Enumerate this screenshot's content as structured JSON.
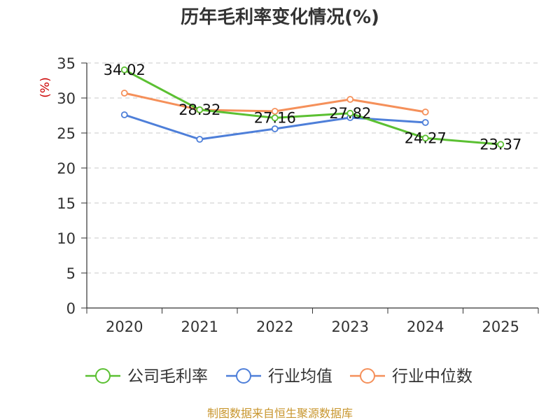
{
  "chart_data": {
    "type": "line",
    "title": "历年毛利率变化情况(%)",
    "ylabel": "(%)",
    "xlabel": "",
    "categories": [
      "2020",
      "2021",
      "2022",
      "2023",
      "2024",
      "2025"
    ],
    "ylim": [
      0,
      35
    ],
    "yticks": [
      0,
      5,
      10,
      15,
      20,
      25,
      30,
      35
    ],
    "grid": "horizontal dashed",
    "legend_position": "bottom",
    "series": [
      {
        "name": "公司毛利率",
        "color": "#5bc032",
        "values": [
          34.02,
          28.32,
          27.16,
          27.82,
          24.27,
          23.37
        ],
        "labels": [
          "34.02",
          "28.32",
          "27.16",
          "27.82",
          "24.27",
          "23.37"
        ]
      },
      {
        "name": "行业均值",
        "color": "#4e7fd9",
        "values": [
          27.6,
          24.1,
          25.6,
          27.2,
          26.5,
          null
        ]
      },
      {
        "name": "行业中位数",
        "color": "#f5905a",
        "values": [
          30.7,
          28.3,
          28.1,
          29.8,
          28.0,
          null
        ]
      }
    ]
  },
  "source": "制图数据来自恒生聚源数据库"
}
